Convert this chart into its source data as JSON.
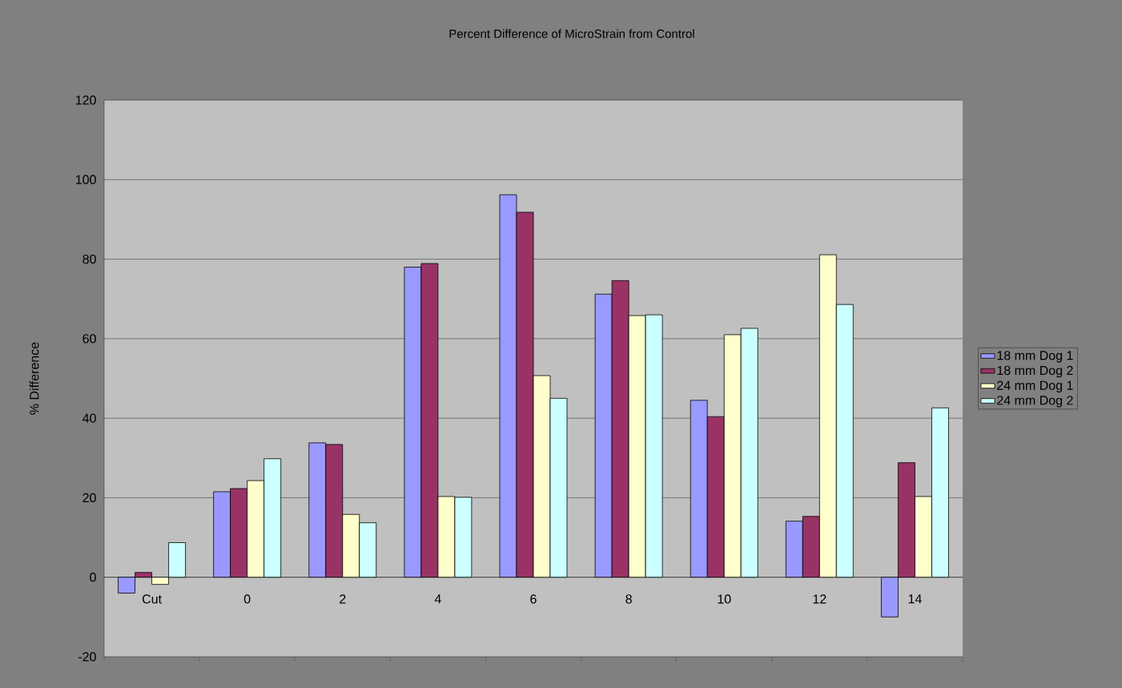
{
  "chart_data": {
    "type": "bar",
    "title": "Percent Difference of MicroStrain from Control",
    "ylabel": "% Difference",
    "categories": [
      "Cut",
      "0",
      "2",
      "4",
      "6",
      "8",
      "10",
      "12",
      "14"
    ],
    "series": [
      {
        "name": "18 mm Dog 1",
        "color": "#9999ff",
        "values": [
          -4,
          21.5,
          33.8,
          78,
          96.2,
          71.2,
          44.5,
          14.1,
          -10
        ]
      },
      {
        "name": "18 mm Dog 2",
        "color": "#993366",
        "values": [
          1.2,
          22.3,
          33.4,
          78.9,
          91.8,
          74.6,
          40.4,
          15.3,
          28.8
        ]
      },
      {
        "name": "24 mm Dog 1",
        "color": "#ffffcc",
        "values": [
          -1.8,
          24.3,
          15.8,
          20.3,
          50.7,
          65.8,
          61,
          81.1,
          20.3
        ]
      },
      {
        "name": "24 mm Dog 2",
        "color": "#ccffff",
        "values": [
          8.7,
          29.8,
          13.7,
          20.1,
          45,
          66,
          62.6,
          68.6,
          42.6
        ]
      }
    ],
    "ylim": [
      -20,
      120
    ],
    "yticks": [
      -20,
      0,
      20,
      40,
      60,
      80,
      100,
      120
    ],
    "grid": "y",
    "legend": "right"
  }
}
